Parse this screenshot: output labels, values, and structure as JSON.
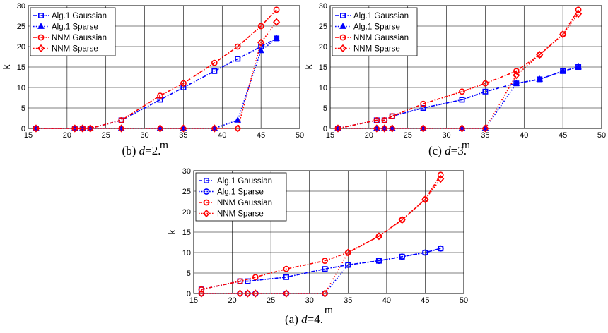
{
  "chart_data": [
    {
      "type": "line",
      "caption": "(b) d=2.",
      "xlabel": "m",
      "ylabel": "k",
      "xlim": [
        15,
        50
      ],
      "ylim": [
        0,
        30
      ],
      "xticks": [
        15,
        20,
        25,
        30,
        35,
        40,
        45,
        50
      ],
      "yticks": [
        0,
        5,
        10,
        15,
        20,
        25,
        30
      ],
      "grid": true,
      "legend_position": "top-left",
      "series": [
        {
          "name": "Alg.1 Gaussian",
          "color": "#0000ff",
          "dash": "dash-dot",
          "marker": "square",
          "x": [
            16,
            21,
            22,
            23,
            27,
            32,
            35,
            39,
            42,
            45,
            47
          ],
          "y": [
            0,
            0,
            0,
            0,
            2,
            7,
            10,
            14,
            17,
            20,
            22
          ]
        },
        {
          "name": "Alg.1 Sparse",
          "color": "#0000ff",
          "dash": "dotted",
          "marker": "triangle",
          "x": [
            16,
            21,
            22,
            23,
            27,
            32,
            35,
            39,
            42,
            45,
            47
          ],
          "y": [
            0,
            0,
            0,
            0,
            0,
            0,
            0,
            0,
            2,
            19,
            22
          ]
        },
        {
          "name": "NNM Gaussian",
          "color": "#ff0000",
          "dash": "dash-dot",
          "marker": "circle",
          "x": [
            16,
            21,
            22,
            23,
            27,
            32,
            35,
            39,
            42,
            45,
            47
          ],
          "y": [
            0,
            0,
            0,
            0,
            2,
            8,
            11,
            16,
            20,
            25,
            29
          ]
        },
        {
          "name": "NNM Sparse",
          "color": "#ff0000",
          "dash": "dotted",
          "marker": "diamond",
          "x": [
            16,
            21,
            22,
            23,
            27,
            32,
            35,
            39,
            42,
            45,
            47
          ],
          "y": [
            0,
            0,
            0,
            0,
            0,
            0,
            0,
            0,
            0,
            21,
            26
          ]
        }
      ]
    },
    {
      "type": "line",
      "caption": "(c) d=3.",
      "xlabel": "m",
      "ylabel": "k",
      "xlim": [
        15,
        50
      ],
      "ylim": [
        0,
        30
      ],
      "xticks": [
        15,
        20,
        25,
        30,
        35,
        40,
        45,
        50
      ],
      "yticks": [
        0,
        5,
        10,
        15,
        20,
        25,
        30
      ],
      "grid": true,
      "legend_position": "top-left",
      "series": [
        {
          "name": "Alg.1 Gaussian",
          "color": "#0000ff",
          "dash": "dash-dot",
          "marker": "square",
          "x": [
            16,
            21,
            22,
            23,
            27,
            32,
            35,
            39,
            42,
            45,
            47
          ],
          "y": [
            0,
            2,
            2,
            3,
            5,
            7,
            9,
            11,
            12,
            14,
            15
          ]
        },
        {
          "name": "Alg.1 Sparse",
          "color": "#0000ff",
          "dash": "dotted",
          "marker": "triangle",
          "x": [
            16,
            21,
            22,
            23,
            27,
            32,
            35,
            39,
            42,
            45,
            47
          ],
          "y": [
            0,
            0,
            0,
            0,
            0,
            0,
            0,
            11,
            12,
            14,
            15
          ]
        },
        {
          "name": "NNM Gaussian",
          "color": "#ff0000",
          "dash": "dash-dot",
          "marker": "circle",
          "x": [
            16,
            21,
            22,
            23,
            27,
            32,
            35,
            39,
            42,
            45,
            47
          ],
          "y": [
            0,
            2,
            2,
            3,
            6,
            9,
            11,
            14,
            18,
            23,
            29
          ]
        },
        {
          "name": "NNM Sparse",
          "color": "#ff0000",
          "dash": "dotted",
          "marker": "diamond",
          "x": [
            16,
            21,
            22,
            23,
            27,
            32,
            35,
            39,
            42,
            45,
            47
          ],
          "y": [
            0,
            0,
            0,
            0,
            0,
            0,
            0,
            13,
            18,
            23,
            28
          ]
        }
      ]
    },
    {
      "type": "line",
      "caption": "(a) d=4.",
      "xlabel": "m",
      "ylabel": "k",
      "xlim": [
        15,
        50
      ],
      "ylim": [
        0,
        30
      ],
      "xticks": [
        15,
        20,
        25,
        30,
        35,
        40,
        45,
        50
      ],
      "yticks": [
        0,
        5,
        10,
        15,
        20,
        25,
        30
      ],
      "grid": true,
      "legend_position": "top-left",
      "series": [
        {
          "name": "Alg.1 Gaussian",
          "color": "#0000ff",
          "dash": "dash-dot",
          "marker": "square",
          "x": [
            16,
            21,
            22,
            27,
            32,
            35,
            39,
            42,
            45,
            47
          ],
          "y": [
            1,
            3,
            3,
            4,
            6,
            7,
            8,
            9,
            10,
            11
          ]
        },
        {
          "name": "Alg.1 Sparse",
          "color": "#0000ff",
          "dash": "dotted",
          "marker": "circle",
          "x": [
            16,
            21,
            22,
            23,
            27,
            32,
            35,
            39,
            42,
            45,
            47
          ],
          "y": [
            0,
            0,
            0,
            0,
            0,
            0,
            7,
            8,
            9,
            10,
            11
          ]
        },
        {
          "name": "NNM Gaussian",
          "color": "#ff0000",
          "dash": "dash-dot",
          "marker": "circle",
          "x": [
            16,
            21,
            23,
            27,
            32,
            35,
            39,
            42,
            45,
            47
          ],
          "y": [
            1,
            3,
            4,
            6,
            8,
            10,
            14,
            18,
            23,
            29
          ]
        },
        {
          "name": "NNM Sparse",
          "color": "#ff0000",
          "dash": "dotted",
          "marker": "diamond",
          "x": [
            16,
            21,
            22,
            23,
            27,
            32,
            35,
            39,
            42,
            45,
            47
          ],
          "y": [
            0,
            0,
            0,
            0,
            0,
            0,
            10,
            14,
            18,
            23,
            28
          ]
        }
      ]
    }
  ]
}
